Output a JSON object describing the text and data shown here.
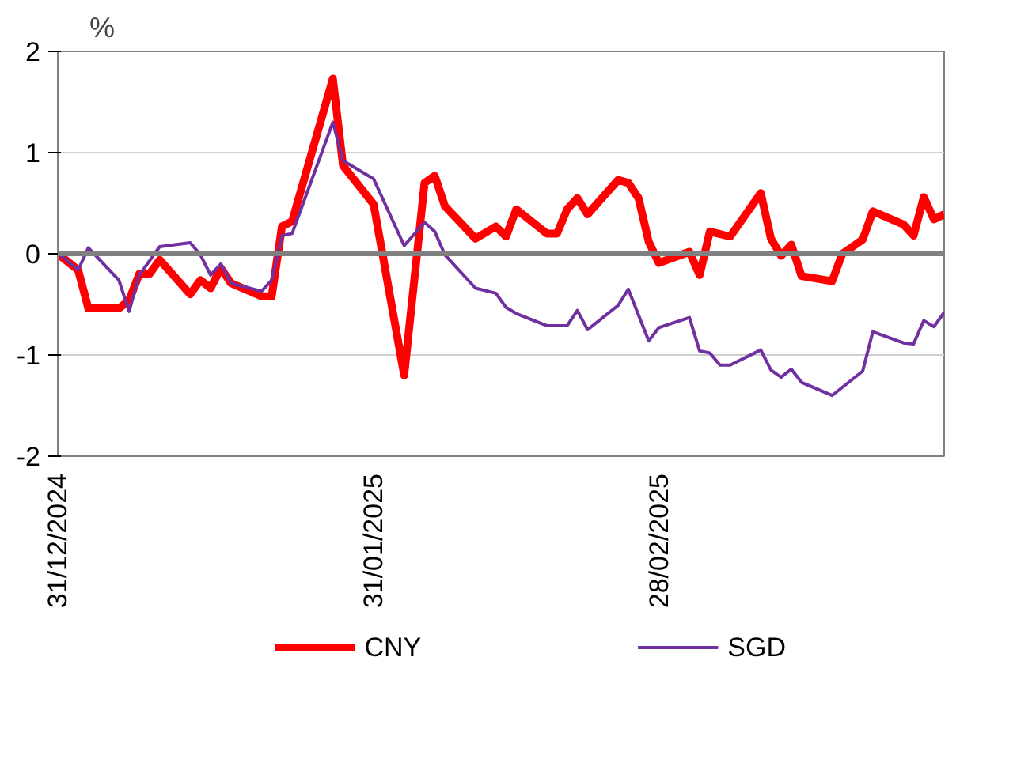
{
  "chart_data": {
    "type": "line",
    "ylabel": "%",
    "xlim": [
      "2024-12-31",
      "2025-03-28"
    ],
    "xticks": [
      {
        "value": "2024-12-31",
        "label": "31/12/2024"
      },
      {
        "value": "2025-01-31",
        "label": "31/01/2025"
      },
      {
        "value": "2025-02-28",
        "label": "28/02/2025"
      }
    ],
    "ylim": [
      -2,
      2
    ],
    "yticks": [
      -2,
      -1,
      0,
      1,
      2
    ],
    "grid": "y",
    "legend": "bottom",
    "ref_lines": [
      {
        "axis": "y",
        "value": 0,
        "color": "#808080"
      }
    ],
    "series": [
      {
        "name": "CNY",
        "color": "#ff0000",
        "x": [
          "2024-12-31",
          "2025-01-02",
          "2025-01-03",
          "2025-01-06",
          "2025-01-07",
          "2025-01-08",
          "2025-01-09",
          "2025-01-10",
          "2025-01-13",
          "2025-01-14",
          "2025-01-15",
          "2025-01-16",
          "2025-01-17",
          "2025-01-20",
          "2025-01-21",
          "2025-01-22",
          "2025-01-23",
          "2025-01-27",
          "2025-01-28",
          "2025-01-31",
          "2025-02-03",
          "2025-02-05",
          "2025-02-06",
          "2025-02-07",
          "2025-02-10",
          "2025-02-12",
          "2025-02-13",
          "2025-02-14",
          "2025-02-17",
          "2025-02-18",
          "2025-02-19",
          "2025-02-20",
          "2025-02-21",
          "2025-02-24",
          "2025-02-25",
          "2025-02-26",
          "2025-02-27",
          "2025-02-28",
          "2025-03-03",
          "2025-03-04",
          "2025-03-05",
          "2025-03-07",
          "2025-03-10",
          "2025-03-11",
          "2025-03-12",
          "2025-03-13",
          "2025-03-14",
          "2025-03-17",
          "2025-03-18",
          "2025-03-20",
          "2025-03-21",
          "2025-03-24",
          "2025-03-25",
          "2025-03-26",
          "2025-03-27",
          "2025-03-28"
        ],
        "values": [
          0,
          -0.16,
          -0.54,
          -0.54,
          -0.46,
          -0.2,
          -0.2,
          -0.06,
          -0.4,
          -0.26,
          -0.34,
          -0.14,
          -0.29,
          -0.42,
          -0.42,
          0.27,
          0.32,
          1.73,
          0.87,
          0.49,
          -1.2,
          0.7,
          0.77,
          0.47,
          0.15,
          0.27,
          0.17,
          0.44,
          0.2,
          0.2,
          0.44,
          0.55,
          0.39,
          0.73,
          0.7,
          0.55,
          0.12,
          -0.09,
          0.02,
          -0.21,
          0.22,
          0.17,
          0.6,
          0.15,
          -0.02,
          0.09,
          -0.22,
          -0.27,
          0,
          0.14,
          0.42,
          0.29,
          0.18,
          0.56,
          0.34,
          0.39
        ]
      },
      {
        "name": "SGD",
        "color": "#7030a0",
        "x": [
          "2024-12-31",
          "2025-01-02",
          "2025-01-03",
          "2025-01-06",
          "2025-01-07",
          "2025-01-08",
          "2025-01-10",
          "2025-01-13",
          "2025-01-14",
          "2025-01-15",
          "2025-01-16",
          "2025-01-17",
          "2025-01-20",
          "2025-01-21",
          "2025-01-22",
          "2025-01-23",
          "2025-01-27",
          "2025-01-28",
          "2025-01-31",
          "2025-02-03",
          "2025-02-05",
          "2025-02-06",
          "2025-02-07",
          "2025-02-10",
          "2025-02-12",
          "2025-02-13",
          "2025-02-14",
          "2025-02-17",
          "2025-02-19",
          "2025-02-20",
          "2025-02-21",
          "2025-02-24",
          "2025-02-25",
          "2025-02-27",
          "2025-02-28",
          "2025-03-03",
          "2025-03-04",
          "2025-03-05",
          "2025-03-06",
          "2025-03-07",
          "2025-03-10",
          "2025-03-11",
          "2025-03-12",
          "2025-03-13",
          "2025-03-14",
          "2025-03-17",
          "2025-03-20",
          "2025-03-21",
          "2025-03-24",
          "2025-03-25",
          "2025-03-26",
          "2025-03-27",
          "2025-03-28"
        ],
        "values": [
          0.01,
          -0.16,
          0.06,
          -0.26,
          -0.57,
          -0.21,
          0.07,
          0.11,
          -0.01,
          -0.21,
          -0.1,
          -0.29,
          -0.37,
          -0.26,
          0.18,
          0.2,
          1.3,
          0.92,
          0.74,
          0.08,
          0.31,
          0.22,
          -0.01,
          -0.34,
          -0.39,
          -0.53,
          -0.59,
          -0.71,
          -0.71,
          -0.56,
          -0.75,
          -0.51,
          -0.35,
          -0.86,
          -0.73,
          -0.63,
          -0.96,
          -0.98,
          -1.1,
          -1.1,
          -0.95,
          -1.15,
          -1.22,
          -1.14,
          -1.27,
          -1.4,
          -1.16,
          -0.77,
          -0.88,
          -0.89,
          -0.66,
          -0.72,
          -0.58
        ]
      }
    ]
  }
}
